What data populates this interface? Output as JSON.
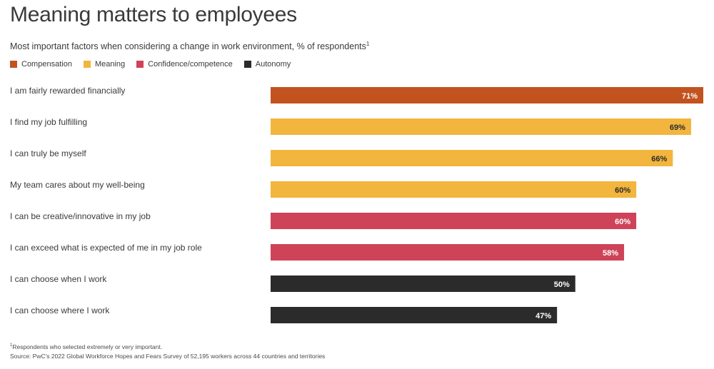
{
  "chart_data": {
    "type": "bar",
    "orientation": "horizontal",
    "title": "Meaning matters to employees",
    "subtitle": "Most important factors when considering a change in work environment, % of respondents",
    "subtitle_sup": "1",
    "legend": [
      {
        "name": "Compensation",
        "color": "#c2531f"
      },
      {
        "name": "Meaning",
        "color": "#f2b53d"
      },
      {
        "name": "Confidence/competence",
        "color": "#cf4358"
      },
      {
        "name": "Autonomy",
        "color": "#2b2b2b"
      }
    ],
    "categories": [
      "I am fairly rewarded financially",
      "I find my job fulfilling",
      "I can truly be myself",
      "My team cares about my well-being",
      "I can be creative/innovative in my job",
      "I can exceed what is expected of me in my job role",
      "I can choose when I work",
      "I can choose where I work"
    ],
    "values": [
      71,
      69,
      66,
      60,
      60,
      58,
      50,
      47
    ],
    "value_labels": [
      "71%",
      "69%",
      "66%",
      "60%",
      "60%",
      "58%",
      "50%",
      "47%"
    ],
    "groups": [
      "Compensation",
      "Meaning",
      "Meaning",
      "Meaning",
      "Confidence/competence",
      "Confidence/competence",
      "Autonomy",
      "Autonomy"
    ],
    "label_colors": [
      "#ffffff",
      "#2b2b2b",
      "#2b2b2b",
      "#2b2b2b",
      "#ffffff",
      "#ffffff",
      "#ffffff",
      "#ffffff"
    ],
    "xlim": [
      0,
      71
    ]
  },
  "footnotes": {
    "note_sup": "1",
    "note": "Respondents who selected extremely or very important.",
    "source": "Source: PwC's 2022 Global Workforce Hopes and Fears Survey of 52,195 workers across 44 countries and territories"
  }
}
